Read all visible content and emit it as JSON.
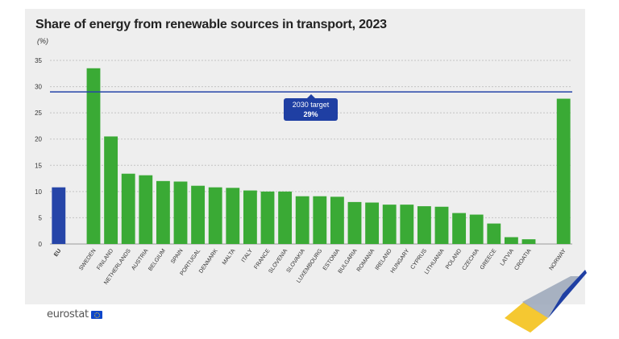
{
  "header": {
    "title": "Share of energy from renewable sources in transport, 2023",
    "unit": "(%)"
  },
  "annotation": {
    "line1": "2030 target",
    "line2": "29%"
  },
  "footer": {
    "logo_text": "eurostat"
  },
  "colors": {
    "eu": "#2645a8",
    "countries": "#3aaa35",
    "target_line": "#2645a8",
    "background": "#eeeeee"
  },
  "chart_data": {
    "type": "bar",
    "title": "Share of energy from renewable sources in transport, 2023",
    "xlabel": "",
    "ylabel": "(%)",
    "ylim": [
      0,
      35
    ],
    "yticks": [
      0,
      5,
      10,
      15,
      20,
      25,
      30,
      35
    ],
    "grid": true,
    "target": 29,
    "categories": [
      "EU",
      "",
      "SWEDEN",
      "FINLAND",
      "NETHERLANDS",
      "AUSTRIA",
      "BELGIUM",
      "SPAIN",
      "PORTUGAL",
      "DENMARK",
      "MALTA",
      "ITALY",
      "FRANCE",
      "SLOVENIA",
      "SLOVAKIA",
      "LUXEMBOURG",
      "ESTONIA",
      "BULGARIA",
      "ROMANIA",
      "IRELAND",
      "HUNGARY",
      "CYPRUS",
      "LITHUANIA",
      "POLAND",
      "CZECHIA",
      "GREECE",
      "LATVIA",
      "CROATIA",
      "",
      "NORWAY"
    ],
    "values": [
      10.8,
      null,
      33.5,
      20.5,
      13.4,
      13.1,
      12.0,
      11.9,
      11.1,
      10.8,
      10.7,
      10.2,
      10.0,
      10.0,
      9.1,
      9.1,
      9.0,
      8.0,
      7.9,
      7.5,
      7.5,
      7.2,
      7.1,
      5.9,
      5.6,
      3.9,
      1.3,
      0.9,
      null,
      27.7
    ]
  }
}
